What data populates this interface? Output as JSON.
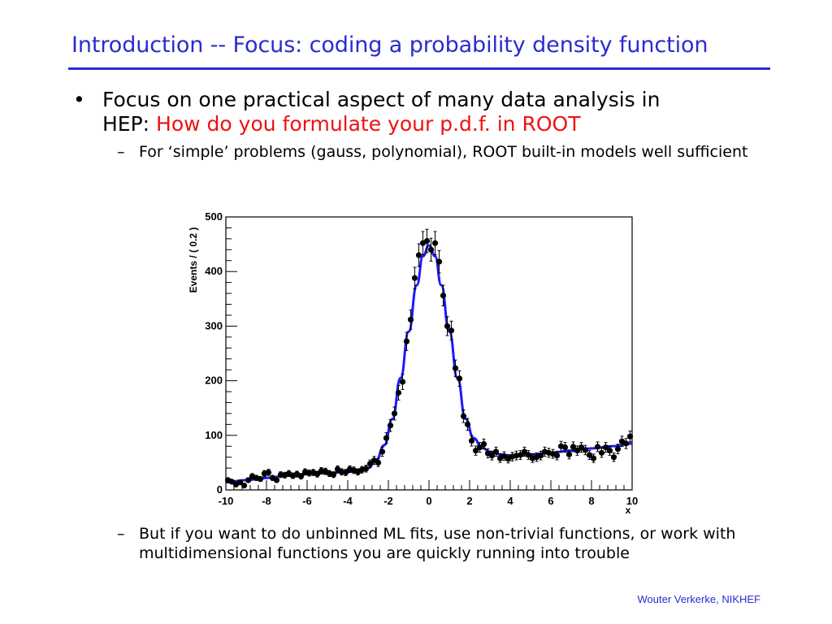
{
  "slide": {
    "title": "Introduction -- Focus: coding a probability density function",
    "bullet1": {
      "marker": "•",
      "text_line1": "Focus on one practical aspect of many data analysis in",
      "text_line2_prefix": "HEP: ",
      "text_line2_highlight": "How do you formulate your p.d.f. in ROOT"
    },
    "sub1": {
      "marker": "–",
      "text": "For ‘simple’ problems (gauss, polynomial), ROOT built-in models well sufficient"
    },
    "sub2": {
      "marker": "–",
      "text": "But if you want to do unbinned ML fits, use non-trivial functions, or work with multidimensional functions you are quickly running into trouble"
    },
    "footer": "Wouter Verkerke, NIKHEF",
    "colors": {
      "title": "#2b2bd0",
      "highlight": "#ee1111",
      "fit_curve": "#1a1aff",
      "data_points": "#000000"
    }
  },
  "chart_data": {
    "type": "scatter",
    "xlabel": "x",
    "ylabel": "Events / ( 0.2 )",
    "xlim": [
      -10,
      10
    ],
    "ylim": [
      0,
      500
    ],
    "xticks": [
      -10,
      -8,
      -6,
      -4,
      -2,
      0,
      2,
      4,
      6,
      8,
      10
    ],
    "yticks": [
      0,
      100,
      200,
      300,
      400,
      500
    ],
    "grid": false,
    "series": [
      {
        "kind": "points_with_errors",
        "x": [
          -9.9,
          -9.7,
          -9.5,
          -9.3,
          -9.1,
          -8.9,
          -8.7,
          -8.5,
          -8.3,
          -8.1,
          -7.9,
          -7.7,
          -7.5,
          -7.3,
          -7.1,
          -6.9,
          -6.7,
          -6.5,
          -6.3,
          -6.1,
          -5.9,
          -5.7,
          -5.5,
          -5.3,
          -5.1,
          -4.9,
          -4.7,
          -4.5,
          -4.3,
          -4.1,
          -3.9,
          -3.7,
          -3.5,
          -3.3,
          -3.1,
          -2.9,
          -2.7,
          -2.5,
          -2.3,
          -2.1,
          -1.9,
          -1.7,
          -1.5,
          -1.3,
          -1.1,
          -0.9,
          -0.7,
          -0.5,
          -0.3,
          -0.1,
          0.1,
          0.3,
          0.5,
          0.7,
          0.9,
          1.1,
          1.3,
          1.5,
          1.7,
          1.9,
          2.1,
          2.3,
          2.5,
          2.7,
          2.9,
          3.1,
          3.3,
          3.5,
          3.7,
          3.9,
          4.1,
          4.3,
          4.5,
          4.7,
          4.9,
          5.1,
          5.3,
          5.5,
          5.7,
          5.9,
          6.1,
          6.3,
          6.5,
          6.7,
          6.9,
          7.1,
          7.3,
          7.5,
          7.7,
          7.9,
          8.1,
          8.3,
          8.5,
          8.7,
          8.9,
          9.1,
          9.3,
          9.5,
          9.7,
          9.9
        ],
        "y": [
          18,
          15,
          10,
          14,
          8,
          18,
          25,
          22,
          20,
          30,
          32,
          22,
          18,
          28,
          27,
          30,
          26,
          29,
          25,
          33,
          31,
          32,
          29,
          35,
          34,
          30,
          28,
          38,
          33,
          32,
          38,
          36,
          33,
          37,
          39,
          48,
          54,
          50,
          70,
          95,
          118,
          140,
          178,
          198,
          272,
          312,
          388,
          430,
          452,
          456,
          440,
          452,
          418,
          356,
          300,
          292,
          223,
          204,
          135,
          120,
          90,
          72,
          78,
          84,
          67,
          63,
          70,
          58,
          62,
          57,
          61,
          63,
          64,
          70,
          64,
          58,
          60,
          63,
          70,
          68,
          66,
          63,
          80,
          78,
          65,
          79,
          72,
          78,
          73,
          64,
          58,
          79,
          68,
          78,
          72,
          60,
          75,
          89,
          85,
          98
        ]
      },
      {
        "kind": "fit_curve",
        "x": [
          -10,
          -9,
          -8,
          -7,
          -6,
          -5,
          -4,
          -3.5,
          -3,
          -2.6,
          -2.2,
          -1.8,
          -1.4,
          -1.0,
          -0.6,
          -0.3,
          0,
          0.3,
          0.6,
          1.0,
          1.4,
          1.8,
          2.2,
          2.6,
          3.0,
          3.5,
          4,
          5,
          6,
          7,
          8,
          9,
          10
        ],
        "y": [
          14,
          18,
          22,
          26,
          29,
          31,
          33,
          35,
          40,
          55,
          82,
          130,
          205,
          290,
          375,
          428,
          448,
          428,
          375,
          290,
          205,
          130,
          95,
          78,
          70,
          65,
          63,
          65,
          68,
          72,
          76,
          80,
          85
        ]
      }
    ]
  }
}
